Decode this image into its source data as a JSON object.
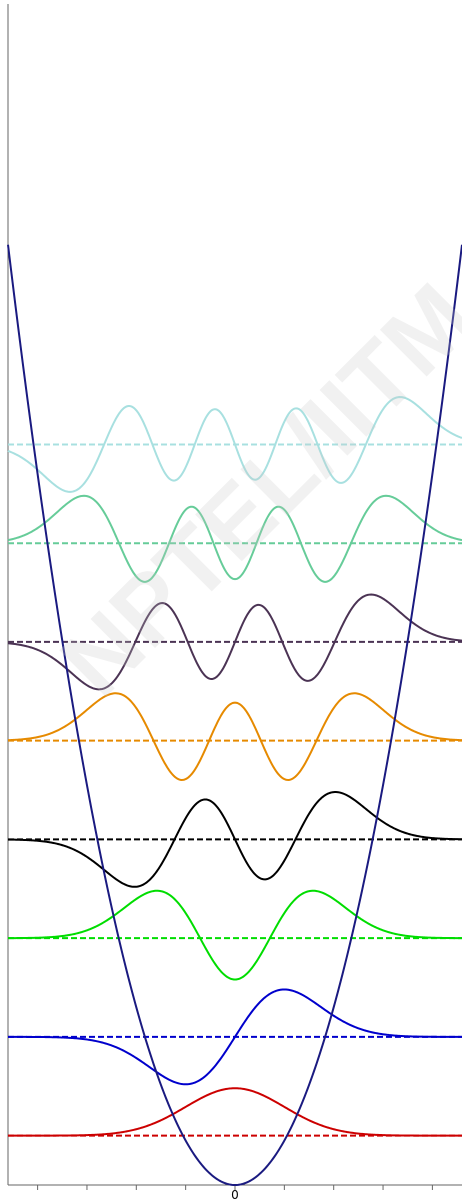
{
  "watermark": "NPTEL/IITM",
  "chart_data": {
    "type": "line",
    "title": "",
    "xlabel": "",
    "ylabel": "",
    "x_tick_labels": [
      "0"
    ],
    "xlim": [
      -4.6,
      4.6
    ],
    "ylim": [
      0,
      11.9
    ],
    "potential": {
      "shape": "parabola",
      "vmin": 0,
      "vmax": 11.9,
      "color": "#1a1a80"
    },
    "series": [
      {
        "n": 0,
        "level": 0.5,
        "color": "#cc0000"
      },
      {
        "n": 1,
        "level": 1.5,
        "color": "#0000cc"
      },
      {
        "n": 2,
        "level": 2.5,
        "color": "#00dd00"
      },
      {
        "n": 3,
        "level": 3.5,
        "color": "#000000"
      },
      {
        "n": 4,
        "level": 4.5,
        "color": "#e68a00"
      },
      {
        "n": 5,
        "level": 5.5,
        "color": "#4b3354"
      },
      {
        "n": 6,
        "level": 6.5,
        "color": "#66cc99"
      },
      {
        "n": 7,
        "level": 7.5,
        "color": "#a8e0e0"
      }
    ]
  }
}
